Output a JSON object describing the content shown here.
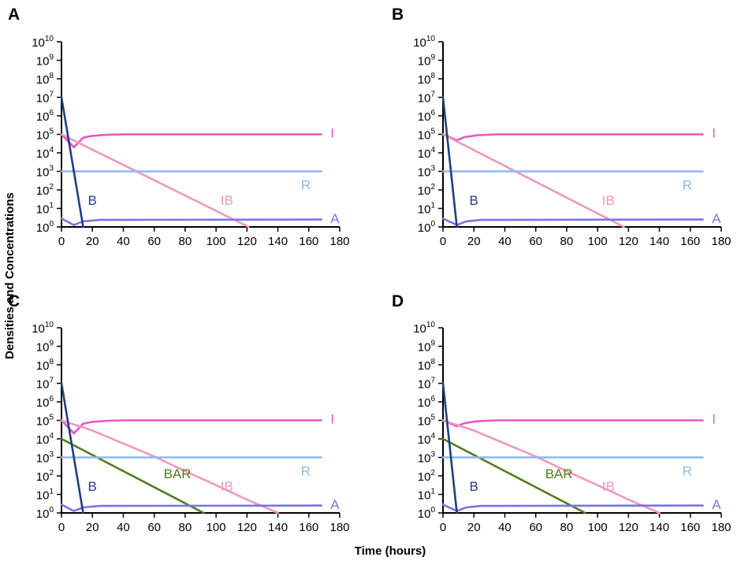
{
  "figure": {
    "ylabel": "Densities and Concentrations",
    "xlabel": "Time (hours)"
  },
  "colors": {
    "B": "#1f3f82",
    "I": "#ea55c8",
    "IB": "#ef98c0",
    "R": "#8fb8ec",
    "A": "#7b74e2",
    "BAR": "#4f7d1c",
    "axis": "#000000"
  },
  "chart_data": [
    {
      "panel": "A",
      "type": "line",
      "yscale": "log",
      "xlim": [
        0,
        180
      ],
      "ylim_exponent": [
        0,
        10
      ],
      "xticks": [
        0,
        20,
        40,
        60,
        80,
        100,
        120,
        140,
        160,
        180
      ],
      "ytick_base": "10",
      "ytick_exponents": [
        "0",
        "1",
        "2",
        "3",
        "4",
        "5",
        "6",
        "7",
        "8",
        "9",
        "10"
      ],
      "series": [
        {
          "name": "B",
          "label": "B",
          "color_key": "B",
          "log10_points": [
            [
              0,
              7
            ],
            [
              14,
              0
            ]
          ]
        },
        {
          "name": "I",
          "label": "I",
          "color_key": "I",
          "log10_points": [
            [
              0,
              5
            ],
            [
              8,
              4.3
            ],
            [
              14,
              4.82
            ],
            [
              20,
              4.92
            ],
            [
              30,
              4.98
            ],
            [
              40,
              5
            ],
            [
              168,
              5
            ]
          ]
        },
        {
          "name": "IB",
          "label": "IB",
          "color_key": "IB",
          "log10_points": [
            [
              0,
              5
            ],
            [
              121,
              0
            ]
          ]
        },
        {
          "name": "R",
          "label": "R",
          "color_key": "R",
          "log10_points": [
            [
              0,
              3
            ],
            [
              168,
              3
            ]
          ]
        },
        {
          "name": "A",
          "label": "A",
          "color_key": "A",
          "log10_points": [
            [
              0,
              0.45
            ],
            [
              8,
              0.1
            ],
            [
              14,
              0.3
            ],
            [
              25,
              0.38
            ],
            [
              168,
              0.4
            ]
          ]
        }
      ]
    },
    {
      "panel": "B",
      "type": "line",
      "yscale": "log",
      "xlim": [
        0,
        180
      ],
      "ylim_exponent": [
        0,
        10
      ],
      "xticks": [
        0,
        20,
        40,
        60,
        80,
        100,
        120,
        140,
        160,
        180
      ],
      "ytick_base": "10",
      "ytick_exponents": [
        "0",
        "1",
        "2",
        "3",
        "4",
        "5",
        "6",
        "7",
        "8",
        "9",
        "10"
      ],
      "series": [
        {
          "name": "B",
          "label": "B",
          "color_key": "B",
          "log10_points": [
            [
              0,
              7
            ],
            [
              9,
              0
            ]
          ]
        },
        {
          "name": "I",
          "label": "I",
          "color_key": "I",
          "log10_points": [
            [
              0,
              5
            ],
            [
              9,
              4.68
            ],
            [
              14,
              4.85
            ],
            [
              22,
              4.95
            ],
            [
              35,
              5
            ],
            [
              168,
              5
            ]
          ]
        },
        {
          "name": "IB",
          "label": "IB",
          "color_key": "IB",
          "log10_points": [
            [
              0,
              5
            ],
            [
              117,
              0
            ]
          ]
        },
        {
          "name": "R",
          "label": "R",
          "color_key": "R",
          "log10_points": [
            [
              0,
              3
            ],
            [
              168,
              3
            ]
          ]
        },
        {
          "name": "A",
          "label": "A",
          "color_key": "A",
          "log10_points": [
            [
              0,
              0.45
            ],
            [
              9,
              0.1
            ],
            [
              15,
              0.3
            ],
            [
              25,
              0.38
            ],
            [
              168,
              0.4
            ]
          ]
        }
      ]
    },
    {
      "panel": "C",
      "type": "line",
      "yscale": "log",
      "xlim": [
        0,
        180
      ],
      "ylim_exponent": [
        0,
        10
      ],
      "xticks": [
        0,
        20,
        40,
        60,
        80,
        100,
        120,
        140,
        160,
        180
      ],
      "ytick_base": "10",
      "ytick_exponents": [
        "0",
        "1",
        "2",
        "3",
        "4",
        "5",
        "6",
        "7",
        "8",
        "9",
        "10"
      ],
      "series": [
        {
          "name": "B",
          "label": "B",
          "color_key": "B",
          "log10_points": [
            [
              0,
              7
            ],
            [
              14,
              0
            ]
          ]
        },
        {
          "name": "I",
          "label": "I",
          "color_key": "I",
          "log10_points": [
            [
              0,
              5
            ],
            [
              8,
              4.3
            ],
            [
              14,
              4.82
            ],
            [
              20,
              4.92
            ],
            [
              30,
              4.98
            ],
            [
              40,
              5
            ],
            [
              168,
              5
            ]
          ]
        },
        {
          "name": "IB",
          "label": "IB",
          "color_key": "IB",
          "log10_points": [
            [
              0,
              5
            ],
            [
              20,
              4.45
            ],
            [
              40,
              3.75
            ],
            [
              60,
              3.05
            ],
            [
              80,
              2.25
            ],
            [
              100,
              1.5
            ],
            [
              120,
              0.72
            ],
            [
              140,
              0
            ]
          ]
        },
        {
          "name": "BAR",
          "label": "BAR",
          "color_key": "BAR",
          "log10_points": [
            [
              0,
              4
            ],
            [
              92,
              0
            ]
          ]
        },
        {
          "name": "R",
          "label": "R",
          "color_key": "R",
          "log10_points": [
            [
              0,
              3
            ],
            [
              168,
              3
            ]
          ]
        },
        {
          "name": "A",
          "label": "A",
          "color_key": "A",
          "log10_points": [
            [
              0,
              0.45
            ],
            [
              8,
              0.1
            ],
            [
              14,
              0.3
            ],
            [
              25,
              0.38
            ],
            [
              168,
              0.4
            ]
          ]
        }
      ]
    },
    {
      "panel": "D",
      "type": "line",
      "yscale": "log",
      "xlim": [
        0,
        180
      ],
      "ylim_exponent": [
        0,
        10
      ],
      "xticks": [
        0,
        20,
        40,
        60,
        80,
        100,
        120,
        140,
        160,
        180
      ],
      "ytick_base": "10",
      "ytick_exponents": [
        "0",
        "1",
        "2",
        "3",
        "4",
        "5",
        "6",
        "7",
        "8",
        "9",
        "10"
      ],
      "series": [
        {
          "name": "B",
          "label": "B",
          "color_key": "B",
          "log10_points": [
            [
              0,
              7
            ],
            [
              9,
              0
            ]
          ]
        },
        {
          "name": "I",
          "label": "I",
          "color_key": "I",
          "log10_points": [
            [
              0,
              5
            ],
            [
              9,
              4.68
            ],
            [
              14,
              4.85
            ],
            [
              22,
              4.95
            ],
            [
              35,
              5
            ],
            [
              168,
              5
            ]
          ]
        },
        {
          "name": "IB",
          "label": "IB",
          "color_key": "IB",
          "log10_points": [
            [
              0,
              5
            ],
            [
              20,
              4.45
            ],
            [
              40,
              3.75
            ],
            [
              60,
              3.05
            ],
            [
              80,
              2.25
            ],
            [
              100,
              1.5
            ],
            [
              120,
              0.72
            ],
            [
              140,
              0
            ]
          ]
        },
        {
          "name": "BAR",
          "label": "BAR",
          "color_key": "BAR",
          "log10_points": [
            [
              0,
              4
            ],
            [
              92,
              0
            ]
          ]
        },
        {
          "name": "R",
          "label": "R",
          "color_key": "R",
          "log10_points": [
            [
              0,
              3
            ],
            [
              168,
              3
            ]
          ]
        },
        {
          "name": "A",
          "label": "A",
          "color_key": "A",
          "log10_points": [
            [
              0,
              0.45
            ],
            [
              9,
              0.1
            ],
            [
              15,
              0.3
            ],
            [
              25,
              0.38
            ],
            [
              168,
              0.4
            ]
          ]
        }
      ]
    }
  ]
}
